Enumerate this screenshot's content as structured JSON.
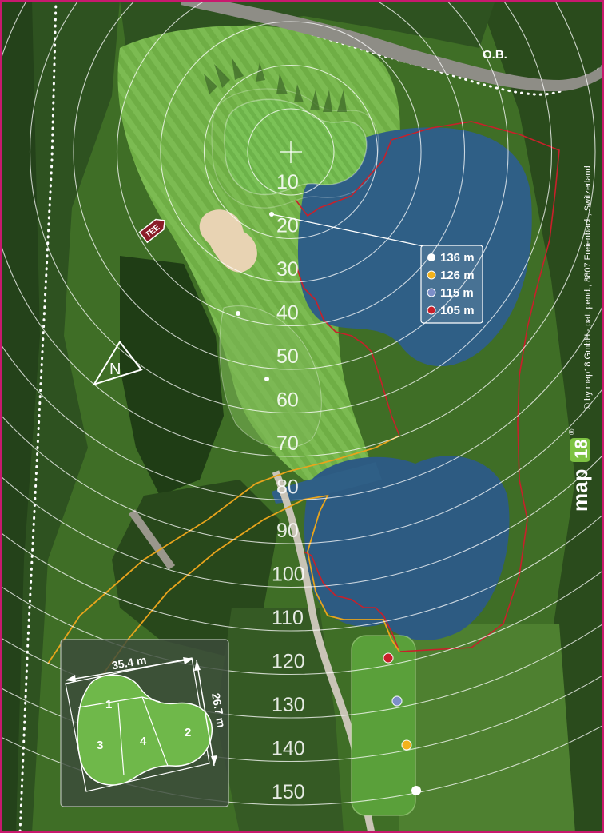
{
  "map": {
    "ob_label": "O.B.",
    "tee_label": "TEE",
    "north_label": "N",
    "distance_rings": [
      "10",
      "20",
      "30",
      "40",
      "50",
      "60",
      "70",
      "80",
      "90",
      "100",
      "110",
      "120",
      "130",
      "140",
      "150"
    ],
    "tee_distances": [
      {
        "color": "#ffffff",
        "label": "136 m"
      },
      {
        "color": "#f2b21c",
        "label": "126 m"
      },
      {
        "color": "#7d8fc8",
        "label": "115 m"
      },
      {
        "color": "#c8202a",
        "label": "105 m"
      }
    ],
    "green_inset": {
      "width_label": "35.4 m",
      "depth_label": "26.7 m",
      "sections": [
        "1",
        "2",
        "3",
        "4"
      ]
    },
    "brand": {
      "logo_text_a": "map",
      "logo_text_b": "18",
      "registered": "®",
      "copyright": "© by map18 GmbH - pat. pend., 8807 Freienbach, Switzerland"
    }
  },
  "colors": {
    "frame": "#c8196e",
    "water": "#2f5f86",
    "fairway": "#5f9a3a",
    "rough": "#3f6e26",
    "trees": "#24421a",
    "bunker": "#e8d3b3",
    "green": "#72b74e",
    "hazard_line": "#c8202a",
    "path_line": "#e8a41c"
  }
}
